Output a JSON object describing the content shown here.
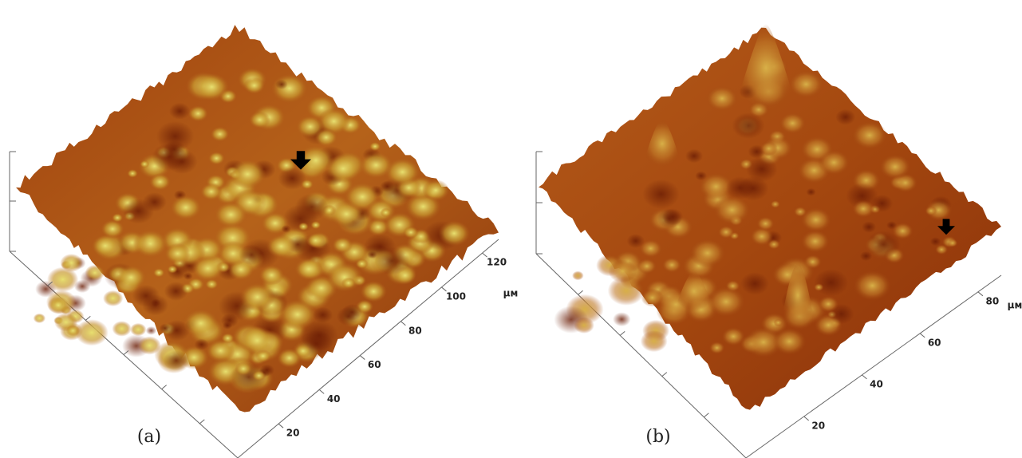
{
  "panels": [
    {
      "label": "(a)",
      "unit": "µм",
      "ticks": [
        20,
        40,
        60,
        80,
        100,
        120
      ]
    },
    {
      "label": "(b)",
      "unit": "µм",
      "ticks": [
        20,
        40,
        60,
        80
      ]
    }
  ]
}
